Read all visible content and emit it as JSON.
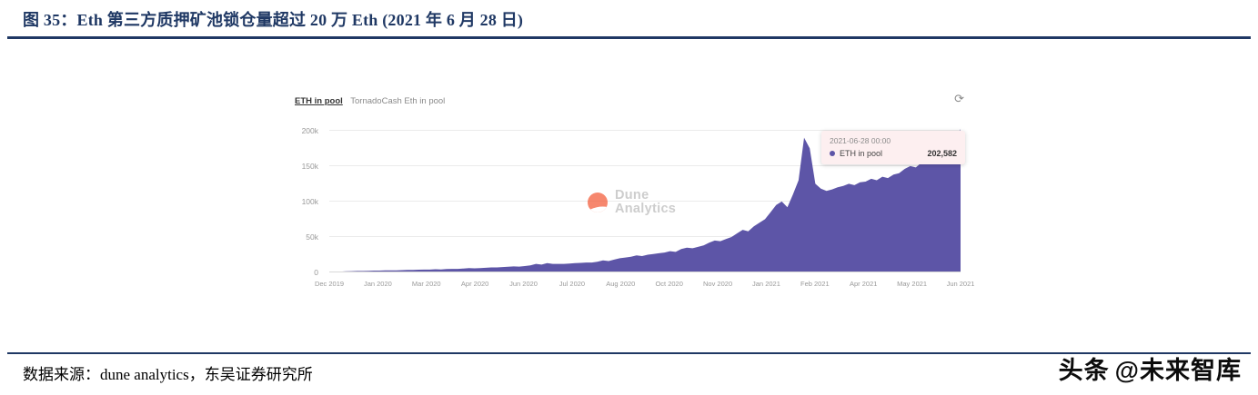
{
  "header": {
    "title": "图 35：Eth 第三方质押矿池锁仓量超过 20 万 Eth (2021 年 6 月 28 日)"
  },
  "chart": {
    "legend_title": "ETH in pool",
    "legend_subtitle": "TornadoCash Eth in pool",
    "refresh_icon": "⟳",
    "watermark_line1": "Dune",
    "watermark_line2": "Analytics",
    "tooltip": {
      "timestamp": "2021-06-28 00:00",
      "series_label": "ETH in pool",
      "value": "202,582"
    }
  },
  "chart_data": {
    "type": "area",
    "title": "TornadoCash ETH in pool over time",
    "xlabel": "",
    "ylabel": "ETH in pool",
    "x_range": [
      "Dec 2019",
      "Jun 2021"
    ],
    "x_ticks": [
      "Dec 2019",
      "Jan 2020",
      "Mar 2020",
      "Apr 2020",
      "Jun 2020",
      "Jul 2020",
      "Aug 2020",
      "Oct 2020",
      "Nov 2020",
      "Jan 2021",
      "Feb 2021",
      "Apr 2021",
      "May 2021",
      "Jun 2021"
    ],
    "y_ticks": [
      "0",
      "50k",
      "100k",
      "150k",
      "200k"
    ],
    "y_tick_values": [
      0,
      50000,
      100000,
      150000,
      200000
    ],
    "ylim": [
      0,
      210000
    ],
    "grid": true,
    "legend_position": "top-left",
    "final_value": 202582,
    "series": [
      {
        "name": "ETH in pool",
        "values_thousands": [
          0.5,
          1,
          1.2,
          1.5,
          1.8,
          2,
          2,
          2.2,
          2.5,
          2.5,
          2.8,
          3,
          3,
          3.2,
          3.5,
          3.5,
          3.8,
          4,
          4,
          4.5,
          4.2,
          4.8,
          5,
          5,
          5.5,
          6,
          5.8,
          6.2,
          6.5,
          7,
          7,
          7.5,
          8,
          8.5,
          8.2,
          9,
          10,
          12,
          11,
          13,
          12,
          12,
          12,
          12.5,
          13,
          13.5,
          14,
          14,
          15,
          17,
          16,
          18,
          20,
          21,
          22,
          24,
          23,
          25,
          26,
          27,
          28,
          30,
          29,
          33,
          35,
          34,
          36,
          38,
          42,
          45,
          44,
          47,
          50,
          55,
          60,
          58,
          65,
          70,
          75,
          85,
          95,
          100,
          92,
          110,
          130,
          190,
          175,
          125,
          118,
          115,
          117,
          120,
          122,
          125,
          123,
          127,
          128,
          132,
          130,
          135,
          133,
          138,
          140,
          146,
          150,
          148,
          155,
          158,
          160,
          158,
          162,
          165,
          170,
          202.6
        ]
      }
    ],
    "colors": {
      "area": "#5d55a7",
      "grid": "#ebebeb",
      "axis_text": "#999999",
      "tooltip_bg": "#fdeff0",
      "dune_orange": "#f4603e",
      "title_navy": "#1f3864"
    }
  },
  "footer": {
    "source": "数据来源：dune analytics，东吴证券研究所"
  },
  "brand": {
    "logo_text": "头条",
    "handle": "@未来智库"
  }
}
